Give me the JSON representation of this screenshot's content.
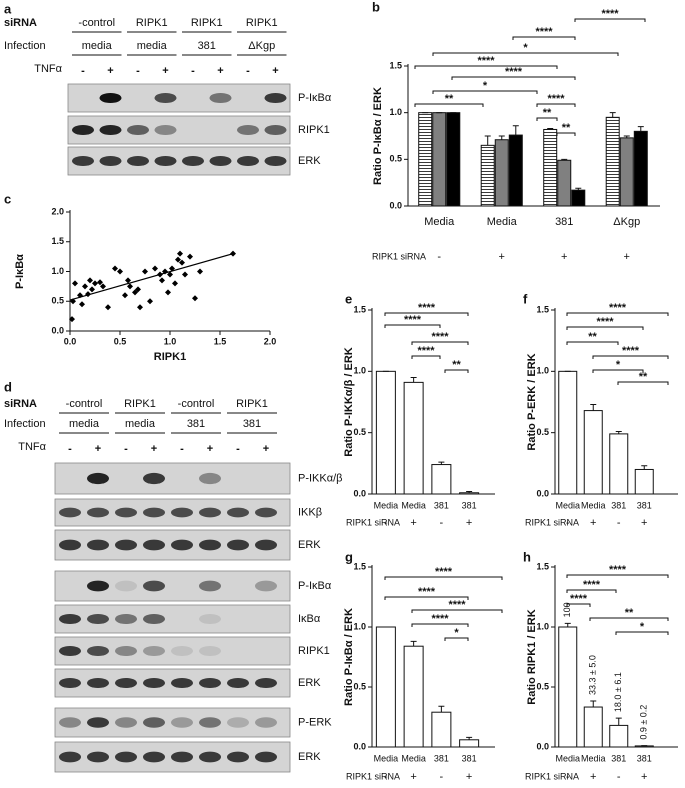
{
  "panel_labels": [
    "a",
    "b",
    "c",
    "d",
    "e",
    "f",
    "g",
    "h"
  ],
  "blot_a": {
    "sirna_label": "siRNA",
    "infection_label": "Infection",
    "tnf_label": "TNFα",
    "sirna": [
      "-control",
      "RIPK1",
      "RIPK1",
      "RIPK1"
    ],
    "infection": [
      "media",
      "media",
      "381",
      "ΔKgp"
    ],
    "tnf": [
      "-",
      "+",
      "-",
      "+",
      "-",
      "+",
      "-",
      "+"
    ],
    "rows": [
      "P-IκBα",
      "RIPK1",
      "ERK"
    ]
  },
  "blot_d": {
    "sirna_label": "siRNA",
    "infection_label": "Infection",
    "tnf_label": "TNFα",
    "sirna": [
      "-control",
      "RIPK1",
      "-control",
      "RIPK1"
    ],
    "infection": [
      "media",
      "media",
      "381",
      "381"
    ],
    "tnf": [
      "-",
      "+",
      "-",
      "+",
      "-",
      "+",
      "-",
      "+"
    ],
    "rows": [
      "P-IKKα/β",
      "IKKβ",
      "ERK",
      "P-IκBα",
      "IκBα",
      "RIPK1",
      "ERK",
      "P-ERK",
      "ERK"
    ]
  },
  "chart_data": [
    {
      "type": "bar",
      "y_label": "Ratio P-IκBα / ERK",
      "categories": [
        "Media",
        "Media",
        "381",
        "ΔKgp"
      ],
      "group_label": "RIPK1 siRNA",
      "sirna": [
        "-",
        "+",
        "+",
        "+"
      ],
      "series": [
        {
          "color": "#ffffff",
          "hatch": true,
          "values": [
            1,
            0.65,
            0.82,
            0.95
          ],
          "errors": [
            0,
            0.1,
            0.01,
            0.05
          ]
        },
        {
          "color": "#808080",
          "values": [
            1,
            0.71,
            0.49,
            0.73
          ],
          "errors": [
            0,
            0.04,
            0.01,
            0.02
          ]
        },
        {
          "color": "#000000",
          "values": [
            1,
            0.76,
            0.17,
            0.8
          ],
          "errors": [
            0,
            0.1,
            0.02,
            0.05
          ]
        }
      ],
      "ylim": [
        0,
        1.5
      ],
      "yticks": [
        {
          "value": 0,
          "label": "0.0"
        },
        {
          "value": 0.5,
          "label": "0.5"
        },
        {
          "value": 1,
          "label": "1.0"
        },
        {
          "value": 1.5,
          "label": "1.5"
        }
      ],
      "annotations": [
        "****",
        "****",
        "*",
        "****",
        "****",
        "*",
        "**",
        "****",
        "**",
        "**"
      ]
    },
    {
      "type": "scatter",
      "x_label": "RIPK1",
      "y_label": "P-IκBα",
      "color": "#000000",
      "x": [
        0.02,
        0.03,
        0.05,
        0.1,
        0.12,
        0.15,
        0.18,
        0.2,
        0.22,
        0.25,
        0.3,
        0.33,
        0.38,
        0.45,
        0.5,
        0.55,
        0.58,
        0.6,
        0.65,
        0.68,
        0.7,
        0.75,
        0.8,
        0.85,
        0.9,
        0.92,
        0.95,
        0.98,
        1.0,
        1.02,
        1.05,
        1.08,
        1.1,
        1.12,
        1.15,
        1.2,
        1.25,
        1.3,
        1.63
      ],
      "y": [
        0.2,
        0.5,
        0.8,
        0.6,
        0.45,
        0.75,
        0.62,
        0.85,
        0.7,
        0.8,
        0.82,
        0.75,
        0.4,
        1.05,
        1.0,
        0.6,
        0.85,
        0.75,
        0.65,
        0.7,
        0.4,
        1.0,
        0.5,
        1.05,
        0.95,
        0.85,
        1.0,
        0.65,
        0.95,
        1.05,
        0.8,
        1.2,
        1.3,
        1.15,
        0.95,
        1.25,
        0.55,
        1.0,
        1.3
      ],
      "trendline": {
        "x": [
          0,
          1.63
        ],
        "y": [
          0.52,
          1.3
        ]
      },
      "xlim": [
        0,
        2
      ],
      "ylim": [
        0,
        2
      ],
      "xticks": [
        {
          "value": 0,
          "label": "0.0"
        },
        {
          "value": 0.5,
          "label": "0.5"
        },
        {
          "value": 1,
          "label": "1.0"
        },
        {
          "value": 1.5,
          "label": "1.5"
        },
        {
          "value": 2,
          "label": "2.0"
        }
      ],
      "yticks": [
        {
          "value": 0,
          "label": "0.0"
        },
        {
          "value": 0.5,
          "label": "0.5"
        },
        {
          "value": 1,
          "label": "1.0"
        },
        {
          "value": 1.5,
          "label": "1.5"
        },
        {
          "value": 2,
          "label": "2.0"
        }
      ]
    },
    {
      "type": "bar",
      "y_label": "Ratio P-IKKα/β / ERK",
      "categories": [
        "Media",
        "Media",
        "381",
        "381"
      ],
      "group_label": "RIPK1 siRNA",
      "sirna": [
        "-",
        "+",
        "-",
        "+"
      ],
      "color": "#ffffff",
      "values": [
        1.0,
        0.91,
        0.24,
        0.01
      ],
      "errors": [
        0,
        0.04,
        0.02,
        0.01
      ],
      "ylim": [
        0,
        1.5
      ],
      "yticks": [
        {
          "value": 0,
          "label": "0.0"
        },
        {
          "value": 0.5,
          "label": "0.5"
        },
        {
          "value": 1,
          "label": "1.0"
        },
        {
          "value": 1.5,
          "label": "1.5"
        }
      ],
      "annotations": [
        "****",
        "****",
        "****",
        "****",
        "**"
      ]
    },
    {
      "type": "bar",
      "y_label": "Ratio P-ERK / ERK",
      "categories": [
        "Media",
        "Media",
        "381",
        "381"
      ],
      "group_label": "RIPK1 siRNA",
      "sirna": [
        "-",
        "+",
        "-",
        "+"
      ],
      "color": "#ffffff",
      "values": [
        1.0,
        0.68,
        0.49,
        0.2
      ],
      "errors": [
        0,
        0.05,
        0.02,
        0.03
      ],
      "ylim": [
        0,
        1.5
      ],
      "yticks": [
        {
          "value": 0,
          "label": "0.0"
        },
        {
          "value": 0.5,
          "label": "0.5"
        },
        {
          "value": 1,
          "label": "1.0"
        },
        {
          "value": 1.5,
          "label": "1.5"
        }
      ],
      "annotations": [
        "****",
        "****",
        "**",
        "****",
        "*",
        "**"
      ]
    },
    {
      "type": "bar",
      "y_label": "Ratio P-IκBα / ERK",
      "categories": [
        "Media",
        "Media",
        "381",
        "381"
      ],
      "group_label": "RIPK1 siRNA",
      "sirna": [
        "-",
        "+",
        "-",
        "+"
      ],
      "color": "#ffffff",
      "values": [
        1.0,
        0.84,
        0.29,
        0.06
      ],
      "errors": [
        0,
        0.04,
        0.05,
        0.02
      ],
      "ylim": [
        0,
        1.5
      ],
      "yticks": [
        {
          "value": 0,
          "label": "0.0"
        },
        {
          "value": 0.5,
          "label": "0.5"
        },
        {
          "value": 1,
          "label": "1.0"
        },
        {
          "value": 1.5,
          "label": "1.5"
        }
      ],
      "annotations": [
        "****",
        "****",
        "****",
        "****",
        "*"
      ]
    },
    {
      "type": "bar",
      "y_label": "Ratio RIPK1 / ERK",
      "categories": [
        "Media",
        "Media",
        "381",
        "381"
      ],
      "group_label": "RIPK1 siRNA",
      "sirna": [
        "-",
        "+",
        "-",
        "+"
      ],
      "color": "#ffffff",
      "values": [
        1.0,
        0.333,
        0.18,
        0.009
      ],
      "errors": [
        0.03,
        0.05,
        0.061,
        0.002
      ],
      "value_labels": [
        "100",
        "33.3 ± 5.0",
        "18.0 ± 6.1",
        "0.9 ± 0.2"
      ],
      "ylim": [
        0,
        1.5
      ],
      "yticks": [
        {
          "value": 0,
          "label": "0.0"
        },
        {
          "value": 0.5,
          "label": "0.5"
        },
        {
          "value": 1,
          "label": "1.0"
        },
        {
          "value": 1.5,
          "label": "1.5"
        }
      ],
      "annotations": [
        "****",
        "****",
        "****",
        "**",
        "*"
      ]
    }
  ]
}
